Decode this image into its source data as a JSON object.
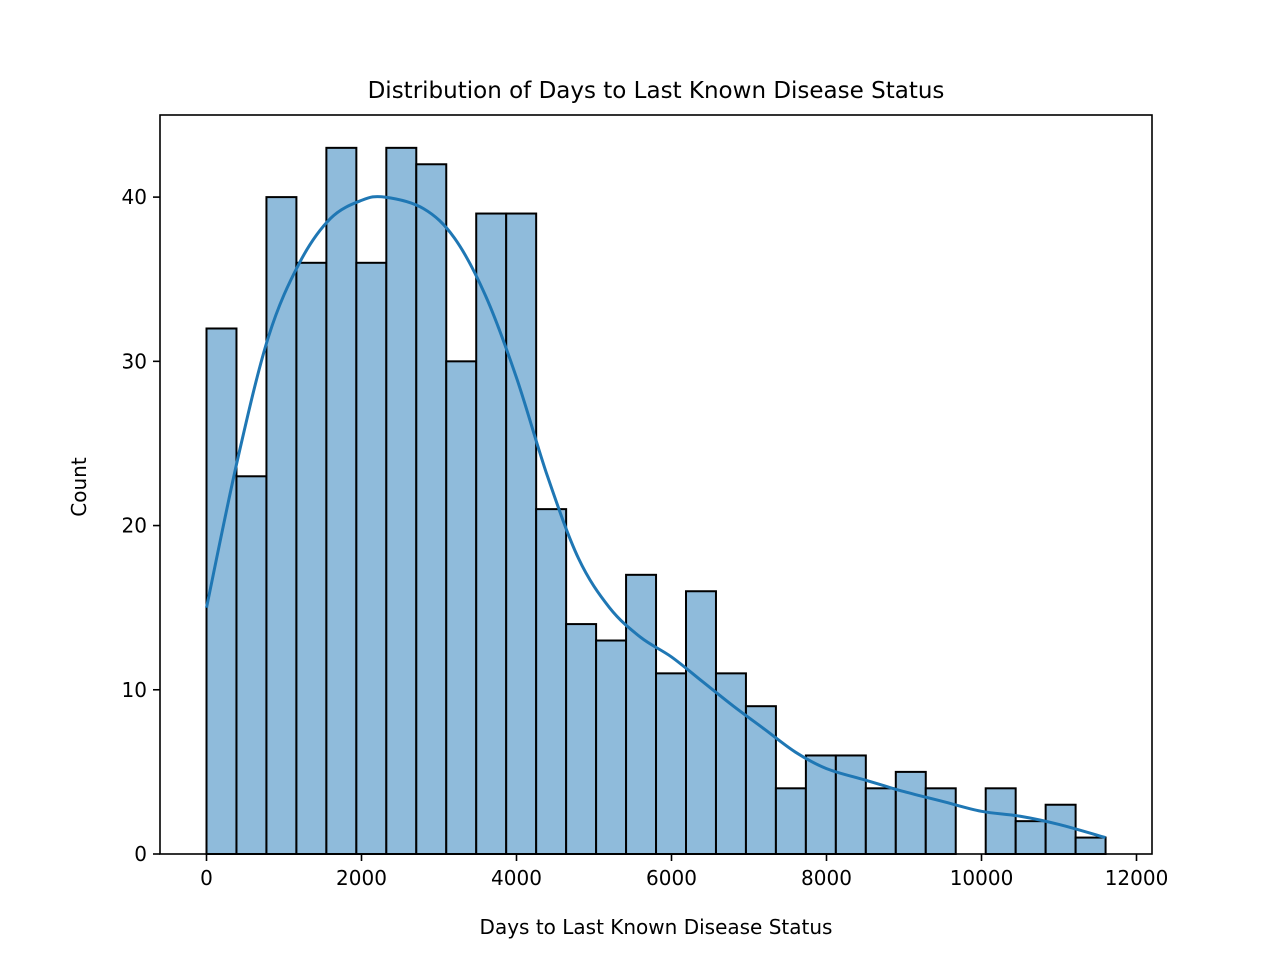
{
  "chart_data": {
    "type": "bar",
    "title": "Distribution of Days to Last Known Disease Status",
    "xlabel": "Days to Last Known Disease Status",
    "ylabel": "Count",
    "xlim": [
      -600,
      12200
    ],
    "ylim": [
      0,
      45
    ],
    "xticks": [
      0,
      2000,
      4000,
      6000,
      8000,
      10000,
      12000
    ],
    "yticks": [
      0,
      10,
      20,
      30,
      40
    ],
    "bin_start": 0,
    "bin_width": 386.7,
    "counts": [
      32,
      23,
      40,
      36,
      43,
      36,
      43,
      42,
      30,
      39,
      39,
      21,
      14,
      13,
      17,
      11,
      16,
      11,
      9,
      4,
      6,
      6,
      4,
      5,
      4,
      0,
      4,
      2,
      3,
      1
    ],
    "kde": {
      "x": [
        0,
        400,
        800,
        1200,
        1600,
        2000,
        2300,
        2800,
        3200,
        3600,
        4000,
        4400,
        4800,
        5200,
        5600,
        6000,
        6400,
        6800,
        7200,
        7600,
        8000,
        8500,
        9000,
        9500,
        10000,
        10500,
        11000,
        11600
      ],
      "y": [
        15,
        24,
        31.5,
        36,
        38.7,
        39.8,
        40,
        39.3,
        37.5,
        34,
        29,
        23,
        18,
        15,
        13.2,
        12,
        10.5,
        9,
        7.6,
        6.2,
        5.2,
        4.5,
        3.8,
        3.2,
        2.6,
        2.3,
        1.8,
        1
      ]
    },
    "grid": false,
    "colors": {
      "bar_fill": "#8fbbdb",
      "bar_edge": "#000000",
      "kde_line": "#1f77b4"
    }
  }
}
